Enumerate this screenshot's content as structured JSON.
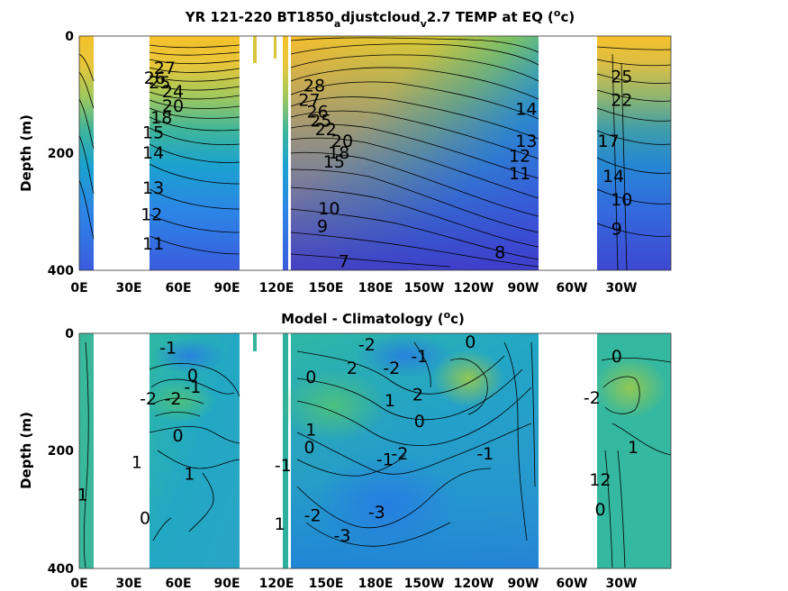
{
  "chart_data": [
    {
      "type": "heatmap",
      "subtype": "filled-contour",
      "title_parts": [
        "YR 121-220 BT1850",
        "a",
        "djustcloud",
        "v",
        "2.7 TEMP at EQ (",
        "o",
        "c)"
      ],
      "ylabel": "Depth (m)",
      "xlabel": "",
      "yticks": [
        "0",
        "200",
        "400"
      ],
      "xticks": [
        "0E",
        "30E",
        "60E",
        "90E",
        "120E",
        "150E",
        "180E",
        "150W",
        "120W",
        "90W",
        "60W",
        "30W"
      ],
      "ylim": [
        400,
        0
      ],
      "colormap": "parula",
      "contour_labels": [
        {
          "text": "27",
          "lon": 52,
          "depth": 55
        },
        {
          "text": "26",
          "lon": 46,
          "depth": 72
        },
        {
          "text": "25",
          "lon": 49,
          "depth": 80
        },
        {
          "text": "24",
          "lon": 57,
          "depth": 95
        },
        {
          "text": "20",
          "lon": 57,
          "depth": 120
        },
        {
          "text": "18",
          "lon": 50,
          "depth": 140
        },
        {
          "text": "15",
          "lon": 45,
          "depth": 165
        },
        {
          "text": "14",
          "lon": 45,
          "depth": 200
        },
        {
          "text": "13",
          "lon": 45,
          "depth": 260
        },
        {
          "text": "12",
          "lon": 44,
          "depth": 305
        },
        {
          "text": "11",
          "lon": 45,
          "depth": 355
        },
        {
          "text": "28",
          "lon": 143,
          "depth": 85
        },
        {
          "text": "27",
          "lon": 140,
          "depth": 110
        },
        {
          "text": "26",
          "lon": 145,
          "depth": 130
        },
        {
          "text": "25",
          "lon": 147,
          "depth": 145
        },
        {
          "text": "22",
          "lon": 150,
          "depth": 160
        },
        {
          "text": "20",
          "lon": 160,
          "depth": 180
        },
        {
          "text": "18",
          "lon": 158,
          "depth": 200
        },
        {
          "text": "15",
          "lon": 155,
          "depth": 215
        },
        {
          "text": "10",
          "lon": 152,
          "depth": 295
        },
        {
          "text": "9",
          "lon": 148,
          "depth": 325
        },
        {
          "text": "7",
          "lon": 161,
          "depth": 385
        },
        {
          "text": "14",
          "lon": 272,
          "depth": 125
        },
        {
          "text": "13",
          "lon": 272,
          "depth": 180
        },
        {
          "text": "12",
          "lon": 268,
          "depth": 205
        },
        {
          "text": "11",
          "lon": 268,
          "depth": 235
        },
        {
          "text": "8",
          "lon": 256,
          "depth": 370
        },
        {
          "text": "25",
          "lon": 330,
          "depth": 70
        },
        {
          "text": "22",
          "lon": 330,
          "depth": 110
        },
        {
          "text": "17",
          "lon": 322,
          "depth": 180
        },
        {
          "text": "14",
          "lon": 325,
          "depth": 240
        },
        {
          "text": "10",
          "lon": 330,
          "depth": 280
        },
        {
          "text": "9",
          "lon": 327,
          "depth": 330
        }
      ]
    },
    {
      "type": "heatmap",
      "subtype": "filled-contour",
      "title_parts": [
        "Model - Climatology (",
        "o",
        "c)"
      ],
      "ylabel": "Depth (m)",
      "xlabel": "",
      "yticks": [
        "0",
        "200",
        "400"
      ],
      "xticks": [
        "0E",
        "30E",
        "60E",
        "90E",
        "120E",
        "150E",
        "180E",
        "150W",
        "120W",
        "90W",
        "60W",
        "30W"
      ],
      "ylim": [
        400,
        0
      ],
      "colormap": "parula",
      "contour_labels": [
        {
          "text": "-1",
          "lon": 54,
          "depth": 25
        },
        {
          "text": "0",
          "lon": 69,
          "depth": 72
        },
        {
          "text": "-1",
          "lon": 69,
          "depth": 92
        },
        {
          "text": "-2",
          "lon": 42,
          "depth": 112
        },
        {
          "text": "-2",
          "lon": 57,
          "depth": 112
        },
        {
          "text": "0",
          "lon": 60,
          "depth": 175
        },
        {
          "text": "1",
          "lon": 67,
          "depth": 240
        },
        {
          "text": "0",
          "lon": 40,
          "depth": 315
        },
        {
          "text": "1",
          "lon": 35,
          "depth": 220
        },
        {
          "text": "1",
          "lon": 2,
          "depth": 275
        },
        {
          "text": "0",
          "lon": 141,
          "depth": 75
        },
        {
          "text": "2",
          "lon": 166,
          "depth": 60
        },
        {
          "text": "-2",
          "lon": 175,
          "depth": 20
        },
        {
          "text": "-2",
          "lon": 190,
          "depth": 60
        },
        {
          "text": "-1",
          "lon": 207,
          "depth": 40
        },
        {
          "text": "1",
          "lon": 189,
          "depth": 115
        },
        {
          "text": "2",
          "lon": 206,
          "depth": 105
        },
        {
          "text": "0",
          "lon": 207,
          "depth": 150
        },
        {
          "text": "1",
          "lon": 141,
          "depth": 165
        },
        {
          "text": "-1",
          "lon": 186,
          "depth": 215
        },
        {
          "text": "-2",
          "lon": 195,
          "depth": 205
        },
        {
          "text": "0",
          "lon": 140,
          "depth": 195
        },
        {
          "text": "-2",
          "lon": 142,
          "depth": 310
        },
        {
          "text": "-3",
          "lon": 181,
          "depth": 305
        },
        {
          "text": "-3",
          "lon": 160,
          "depth": 345
        },
        {
          "text": "0",
          "lon": 238,
          "depth": 15
        },
        {
          "text": "-1",
          "lon": 247,
          "depth": 205
        },
        {
          "text": "0",
          "lon": 327,
          "depth": 40
        },
        {
          "text": "-2",
          "lon": 312,
          "depth": 110
        },
        {
          "text": "1",
          "lon": 337,
          "depth": 195
        },
        {
          "text": "0",
          "lon": 317,
          "depth": 300
        },
        {
          "text": "12",
          "lon": 317,
          "depth": 250
        },
        {
          "text": "1",
          "lon": 122,
          "depth": 325
        },
        {
          "text": "-1",
          "lon": 124,
          "depth": 225
        }
      ]
    }
  ]
}
